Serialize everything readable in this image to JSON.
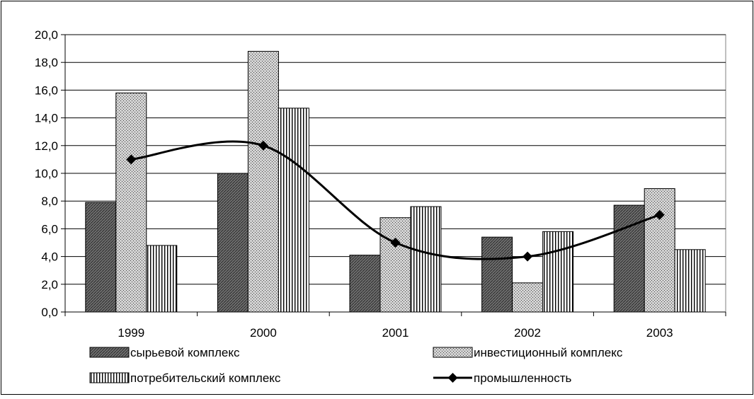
{
  "chart_data": {
    "type": "bar",
    "categories": [
      "1999",
      "2000",
      "2001",
      "2002",
      "2003"
    ],
    "series": [
      {
        "name": "сырьевой комплекс",
        "type": "bar",
        "pattern": "dense",
        "values": [
          7.9,
          10.0,
          4.1,
          5.4,
          7.7
        ]
      },
      {
        "name": "инвестиционный комплекс",
        "type": "bar",
        "pattern": "dots",
        "values": [
          15.8,
          18.8,
          6.8,
          2.1,
          8.9
        ]
      },
      {
        "name": "потребительский комплекс",
        "type": "bar",
        "pattern": "vertical-lines",
        "values": [
          4.8,
          14.7,
          7.6,
          5.8,
          4.5
        ]
      },
      {
        "name": "промышленность",
        "type": "line",
        "smooth": true,
        "marker": "diamond",
        "values": [
          11.0,
          12.0,
          5.0,
          4.0,
          7.0
        ]
      }
    ],
    "ylim": [
      0,
      20
    ],
    "yticks": [
      "0,0",
      "2,0",
      "4,0",
      "6,0",
      "8,0",
      "10,0",
      "12,0",
      "14,0",
      "16,0",
      "18,0",
      "20,0"
    ],
    "grid": true,
    "legend_position": "bottom",
    "colors": {
      "bar_fill": "#7f7f7f",
      "line": "#000000",
      "grid": "#000000",
      "background": "#ffffff"
    }
  }
}
